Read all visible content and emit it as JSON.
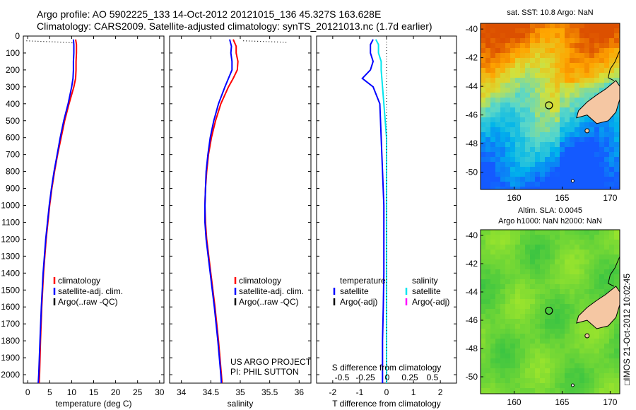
{
  "header": {
    "line1": "Argo profile: AO 5902225_133 14-Oct-2012 20121015_136 45.327S 163.628E",
    "line2": "Climatology: CARS2009. Satellite-adjusted climatology: synTS_20121013.nc (1.7d earlier)"
  },
  "side_text": "□IMOS 21-Oct-2012 10:02:45",
  "colors": {
    "climatology": "#ff0000",
    "satellite": "#0000ff",
    "argo": "#000000",
    "satellite_salinity": "#00e5ee",
    "argo_salinity": "#ff00ff",
    "land": "#f5c7a3"
  },
  "depth_axis": {
    "range": [
      0,
      2050
    ],
    "ticks": [
      0,
      100,
      200,
      300,
      400,
      500,
      600,
      700,
      800,
      900,
      1000,
      1100,
      1200,
      1300,
      1400,
      1500,
      1600,
      1700,
      1800,
      1900,
      2000
    ]
  },
  "chart_data": [
    {
      "type": "line",
      "id": "temperature",
      "xlabel": "temperature (deg C)",
      "xlim": [
        -1,
        31
      ],
      "xticks": [
        0,
        5,
        10,
        15,
        20,
        25,
        30
      ],
      "legend": {
        "position": "lower-center",
        "entries": [
          "climatology",
          "satellite-adj. clim.",
          "Argo(..raw -QC)"
        ]
      },
      "series": [
        {
          "name": "climatology",
          "color": "#ff0000",
          "depth": [
            20,
            50,
            100,
            150,
            200,
            250,
            300,
            400,
            500,
            600,
            700,
            800,
            900,
            1000,
            1200,
            1400,
            1600,
            1800,
            2000,
            2050
          ],
          "values": [
            10.9,
            11.1,
            11.1,
            11.0,
            11.0,
            10.9,
            10.5,
            9.4,
            8.4,
            7.6,
            6.8,
            6.1,
            5.5,
            5.0,
            4.2,
            3.6,
            3.2,
            2.9,
            2.7,
            2.6
          ]
        },
        {
          "name": "satellite-adj. clim.",
          "color": "#0000ff",
          "depth": [
            20,
            50,
            100,
            150,
            200,
            250,
            300,
            400,
            500,
            600,
            700,
            800,
            900,
            1000,
            1200,
            1400,
            1600,
            1800,
            2000,
            2050
          ],
          "values": [
            10.4,
            10.5,
            10.5,
            10.4,
            10.4,
            10.3,
            10.0,
            9.2,
            8.2,
            7.4,
            6.7,
            6.0,
            5.4,
            4.9,
            4.1,
            3.5,
            3.1,
            2.8,
            2.5,
            2.4
          ]
        },
        {
          "name": "Argo(..raw -QC)",
          "color": "#000000",
          "dotted": true,
          "depth": [
            28,
            30,
            32,
            34,
            36,
            38,
            40
          ],
          "values": [
            -0.3,
            1.5,
            3.5,
            5.5,
            7.5,
            9.0,
            10.3
          ]
        }
      ]
    },
    {
      "type": "line",
      "id": "salinity",
      "xlabel": "salinity",
      "xlim": [
        33.8,
        36.2
      ],
      "xticks": [
        34,
        34.5,
        35,
        35.5,
        36
      ],
      "legend": {
        "position": "lower-center",
        "entries": [
          "climatology",
          "satellite-adj. clim.",
          "Argo(..raw -QC)"
        ]
      },
      "annotation": [
        "US ARGO PROJECT",
        "PI: PHIL SUTTON"
      ],
      "series": [
        {
          "name": "climatology",
          "color": "#ff0000",
          "depth": [
            20,
            60,
            100,
            150,
            200,
            250,
            300,
            400,
            500,
            600,
            700,
            800,
            900,
            1000,
            1100,
            1200,
            1400,
            1600,
            1800,
            2000,
            2050
          ],
          "values": [
            34.88,
            34.93,
            34.93,
            34.96,
            34.95,
            34.88,
            34.8,
            34.67,
            34.58,
            34.51,
            34.46,
            34.43,
            34.41,
            34.4,
            34.41,
            34.43,
            34.5,
            34.57,
            34.63,
            34.68,
            34.69
          ]
        },
        {
          "name": "satellite-adj. clim.",
          "color": "#0000ff",
          "depth": [
            20,
            60,
            100,
            150,
            200,
            250,
            300,
            400,
            500,
            600,
            700,
            800,
            900,
            1000,
            1100,
            1200,
            1400,
            1600,
            1800,
            2000,
            2050
          ],
          "values": [
            34.82,
            34.85,
            34.84,
            34.86,
            34.86,
            34.8,
            34.74,
            34.63,
            34.55,
            34.49,
            34.45,
            34.42,
            34.41,
            34.4,
            34.4,
            34.42,
            34.49,
            34.56,
            34.62,
            34.67,
            34.68
          ]
        },
        {
          "name": "Argo(..raw -QC)",
          "color": "#000000",
          "dotted": true,
          "depth": [
            28,
            30,
            32,
            34,
            36,
            38
          ],
          "values": [
            35.05,
            35.22,
            35.4,
            35.55,
            35.7,
            35.8
          ]
        }
      ]
    },
    {
      "type": "line",
      "id": "difference",
      "xlabel": "T difference from climatology",
      "xlim": [
        -2.6,
        2.6
      ],
      "xticks": [
        -2,
        -1,
        0,
        1,
        2
      ],
      "secondary_xlabel": "S difference from climatology",
      "secondary_xticks": [
        "-0.5",
        "-0.25",
        "0",
        "0.25",
        "0.5"
      ],
      "legend": {
        "position": "lower-center",
        "columns": [
          "temperature",
          "salinity"
        ],
        "entries": [
          "satellite",
          "Argo(-adj)",
          "satellite",
          "Argo(-adj)"
        ]
      },
      "series": [
        {
          "name": "temperature satellite",
          "color": "#0000ff",
          "depth": [
            20,
            50,
            100,
            150,
            200,
            250,
            300,
            400,
            600,
            800,
            1000,
            1200,
            1400,
            1600,
            1800,
            2000,
            2050
          ],
          "values": [
            -0.5,
            -0.6,
            -0.6,
            -0.5,
            -0.6,
            -0.9,
            -0.5,
            -0.25,
            -0.2,
            -0.15,
            -0.1,
            -0.1,
            -0.1,
            -0.12,
            -0.15,
            -0.15,
            -0.15
          ]
        },
        {
          "name": "salinity satellite",
          "color": "#00e5ee",
          "depth": [
            20,
            50,
            100,
            150,
            200,
            300,
            400,
            600,
            800,
            1000,
            1200,
            1400,
            1600,
            1800,
            2000,
            2050
          ],
          "values": [
            -0.4,
            -0.3,
            -0.3,
            -0.2,
            -0.2,
            -0.15,
            -0.1,
            0.0,
            0.0,
            0.0,
            0.0,
            0.0,
            0.0,
            0.0,
            0.0,
            0.0
          ]
        }
      ]
    },
    {
      "type": "heatmap",
      "id": "sst_map",
      "title": "sat. SST: 10.8  Argo: NaN",
      "xticks": [
        160,
        165,
        170
      ],
      "yticks": [
        -40,
        -42,
        -44,
        -46,
        -48,
        -50
      ],
      "xlim": [
        156.5,
        171
      ],
      "ylim": [
        -51.2,
        -39.6
      ],
      "argo_location": [
        163.628,
        -45.327
      ]
    },
    {
      "type": "heatmap",
      "id": "sla_map",
      "title_lines": [
        "Altim. SLA: 0.0045",
        "Argo h1000: NaN h2000: NaN"
      ],
      "xticks": [
        160,
        165,
        170
      ],
      "yticks": [
        -40,
        -42,
        -44,
        -46,
        -48,
        -50
      ],
      "xlim": [
        156.5,
        171
      ],
      "ylim": [
        -51.2,
        -39.6
      ],
      "argo_location": [
        163.628,
        -45.327
      ]
    }
  ]
}
